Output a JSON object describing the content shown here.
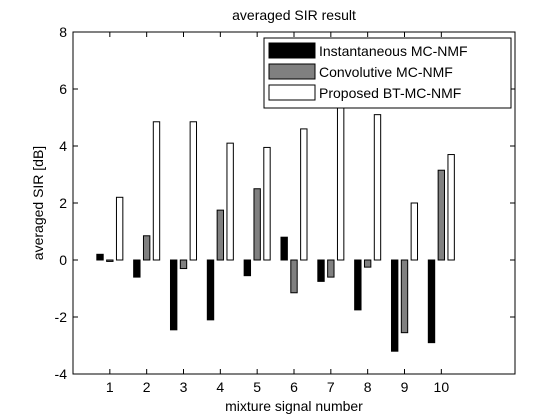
{
  "chart_data": {
    "type": "bar",
    "title": "averaged SIR result",
    "xlabel": "mixture signal number",
    "ylabel": "averaged SIR [dB]",
    "categories": [
      "1",
      "2",
      "3",
      "4",
      "5",
      "6",
      "7",
      "8",
      "9",
      "10"
    ],
    "xlim": [
      0,
      12
    ],
    "ylim": [
      -4,
      8
    ],
    "yticks": [
      "-4",
      "-2",
      "0",
      "2",
      "4",
      "6",
      "8"
    ],
    "grid": false,
    "legend_position": "top-right",
    "series": [
      {
        "name": "Instantaneous MC-NMF",
        "color": "#000000",
        "values": [
          0.2,
          -0.6,
          -2.45,
          -2.1,
          -0.55,
          0.8,
          -0.75,
          -1.75,
          -3.2,
          -2.9
        ]
      },
      {
        "name": "Convolutive MC-NMF",
        "color": "#808080",
        "values": [
          -0.05,
          0.85,
          -0.3,
          1.75,
          2.5,
          -1.15,
          -0.6,
          -0.25,
          -2.55,
          3.15
        ]
      },
      {
        "name": "Proposed BT-MC-NMF",
        "color": "#ffffff",
        "values": [
          2.2,
          4.85,
          4.85,
          4.1,
          3.95,
          4.6,
          5.6,
          5.1,
          2.0,
          3.7
        ]
      }
    ]
  }
}
